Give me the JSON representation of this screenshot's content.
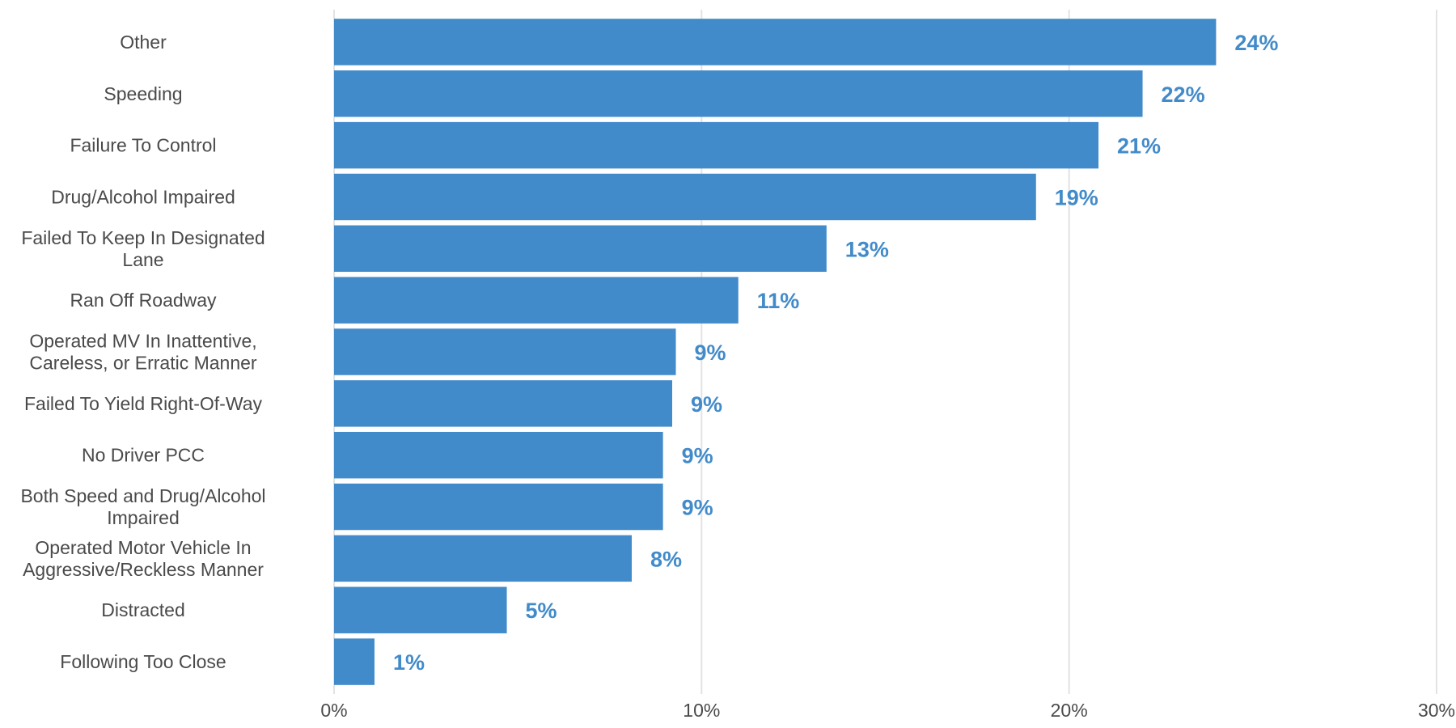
{
  "chart_data": {
    "type": "bar",
    "orientation": "horizontal",
    "categories": [
      "Other",
      "Speeding",
      "Failure To Control",
      "Drug/Alcohol Impaired",
      "Failed To Keep In Designated Lane",
      "Ran Off Roadway",
      "Operated MV In Inattentive, Careless, or Erratic Manner",
      "Failed To Yield Right-Of-Way",
      "No Driver PCC",
      "Both Speed and Drug/Alcohol Impaired",
      "Operated Motor Vehicle In Aggressive/Reckless Manner",
      "Distracted",
      "Following Too Close"
    ],
    "category_lines": [
      [
        "Other"
      ],
      [
        "Speeding"
      ],
      [
        "Failure To Control"
      ],
      [
        "Drug/Alcohol Impaired"
      ],
      [
        "Failed To Keep In Designated",
        "Lane"
      ],
      [
        "Ran Off Roadway"
      ],
      [
        "Operated MV In Inattentive,",
        "Careless, or Erratic Manner"
      ],
      [
        "Failed To Yield Right-Of-Way"
      ],
      [
        "No Driver PCC"
      ],
      [
        "Both Speed and Drug/Alcohol",
        "Impaired"
      ],
      [
        "Operated Motor Vehicle In",
        "Aggressive/Reckless Manner"
      ],
      [
        "Distracted"
      ],
      [
        "Following Too Close"
      ]
    ],
    "values": [
      24.0,
      22.0,
      20.8,
      19.1,
      13.4,
      11.0,
      9.3,
      9.2,
      8.95,
      8.95,
      8.1,
      4.7,
      1.1
    ],
    "value_labels": [
      "24%",
      "22%",
      "21%",
      "19%",
      "13%",
      "11%",
      "9%",
      "9%",
      "9%",
      "9%",
      "8%",
      "5%",
      "1%"
    ],
    "xlim": [
      0,
      30
    ],
    "x_ticks": [
      0,
      10,
      20,
      30
    ],
    "x_tick_labels": [
      "0%",
      "10%",
      "20%",
      "30%"
    ],
    "grid": "vertical",
    "title": "",
    "xlabel": "",
    "ylabel": "",
    "bar_color": "#428bca",
    "label_color": "#428bca"
  }
}
